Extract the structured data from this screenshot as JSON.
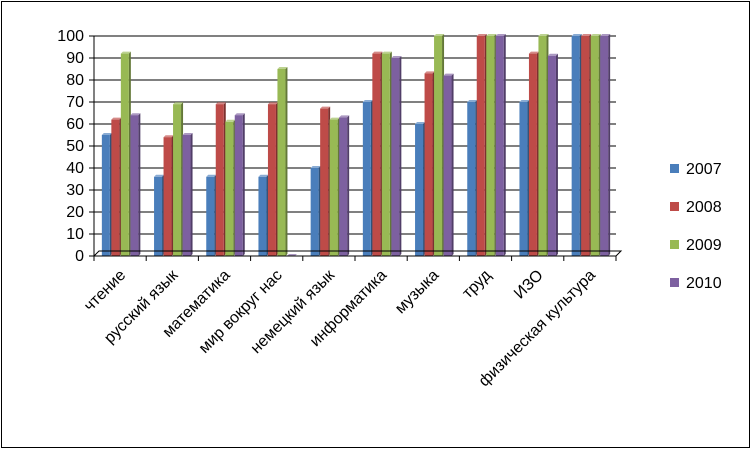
{
  "chart_data": {
    "type": "bar",
    "title": "",
    "xlabel": "",
    "ylabel": "",
    "ylim": [
      0,
      100
    ],
    "yticks": [
      0,
      10,
      20,
      30,
      40,
      50,
      60,
      70,
      80,
      90,
      100
    ],
    "grid": true,
    "legend_position": "right",
    "categories": [
      "чтение",
      "русский язык",
      "математика",
      "мир вокруг нас",
      "немецкий язык",
      "информатика",
      "музыка",
      "труд",
      "ИЗО",
      "физическая культура"
    ],
    "series": [
      {
        "name": "2007",
        "color": "#4a7ebb",
        "values": [
          55,
          36,
          36,
          36,
          40,
          70,
          60,
          70,
          70,
          100
        ]
      },
      {
        "name": "2008",
        "color": "#be4b48",
        "values": [
          62,
          54,
          69,
          69,
          67,
          92,
          83,
          100,
          92,
          100
        ]
      },
      {
        "name": "2009",
        "color": "#98b954",
        "values": [
          92,
          69,
          61,
          85,
          62,
          92,
          100,
          100,
          100,
          100
        ]
      },
      {
        "name": "2010",
        "color": "#7d60a0",
        "values": [
          64,
          55,
          64,
          0,
          63,
          90,
          82,
          100,
          91,
          100
        ]
      }
    ]
  }
}
